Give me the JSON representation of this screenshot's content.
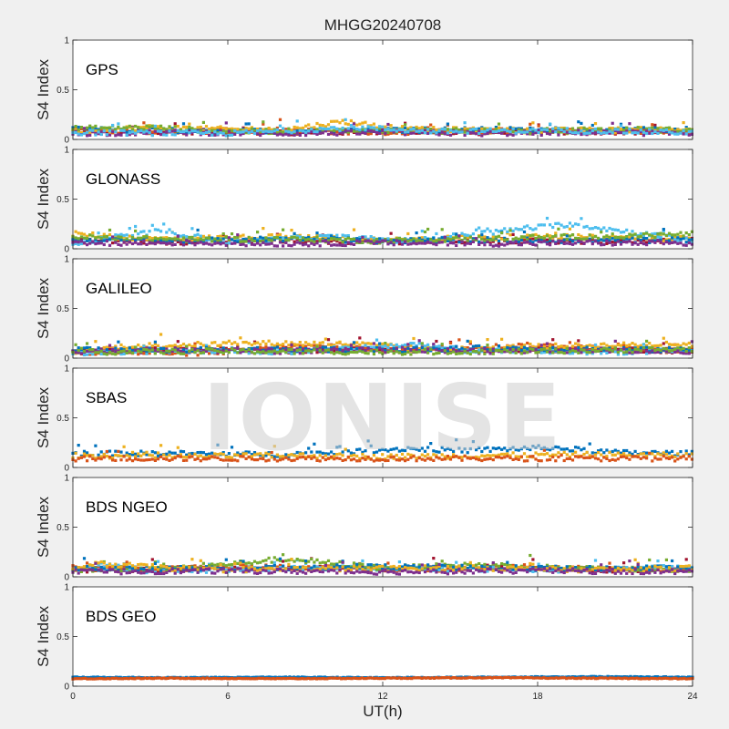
{
  "title": "MHGG20240708",
  "watermark": "IONISE",
  "xlabel": "UT(h)",
  "xlim": [
    0,
    24
  ],
  "xticks": [
    0,
    6,
    12,
    18,
    24
  ],
  "colors": [
    "#0072bd",
    "#d95319",
    "#edb120",
    "#7e2f8e",
    "#77ac30",
    "#4dbeee",
    "#a2142f"
  ],
  "chart_data": [
    {
      "type": "scatter",
      "label": "GPS",
      "ylabel": "S4 Index",
      "ylim": [
        0,
        1
      ],
      "yticks": [
        0,
        0.5,
        1
      ],
      "series": [
        {
          "color": "#a2142f",
          "x": [
            0,
            4,
            8,
            12,
            16,
            20,
            24
          ],
          "y": [
            0.07,
            0.08,
            0.07,
            0.08,
            0.07,
            0.08,
            0.07
          ]
        },
        {
          "color": "#d95319",
          "x": [
            0,
            4,
            8,
            12,
            16,
            20,
            24
          ],
          "y": [
            0.09,
            0.08,
            0.09,
            0.07,
            0.09,
            0.08,
            0.09
          ]
        },
        {
          "color": "#0072bd",
          "x": [
            0,
            4,
            8,
            12,
            16,
            20,
            24
          ],
          "y": [
            0.1,
            0.09,
            0.08,
            0.09,
            0.1,
            0.09,
            0.1
          ]
        },
        {
          "color": "#edb120",
          "x": [
            0,
            3,
            8,
            10.5,
            13,
            18,
            24
          ],
          "y": [
            0.08,
            0.12,
            0.09,
            0.18,
            0.1,
            0.09,
            0.1
          ]
        },
        {
          "color": "#77ac30",
          "x": [
            0,
            3,
            6,
            12,
            18,
            22,
            24
          ],
          "y": [
            0.11,
            0.12,
            0.08,
            0.09,
            0.08,
            0.1,
            0.09
          ]
        },
        {
          "color": "#7e2f8e",
          "x": [
            0,
            4,
            8,
            12,
            16,
            20,
            24
          ],
          "y": [
            0.06,
            0.07,
            0.06,
            0.07,
            0.06,
            0.07,
            0.06
          ]
        },
        {
          "color": "#4dbeee",
          "x": [
            0,
            6,
            11,
            14,
            19,
            24
          ],
          "y": [
            0.07,
            0.06,
            0.12,
            0.08,
            0.09,
            0.07
          ]
        }
      ]
    },
    {
      "type": "scatter",
      "label": "GLONASS",
      "ylabel": "S4 Index",
      "ylim": [
        0,
        1
      ],
      "yticks": [
        0,
        0.5,
        1
      ],
      "series": [
        {
          "color": "#a2142f",
          "x": [
            0,
            4,
            8,
            12,
            16,
            20,
            24
          ],
          "y": [
            0.08,
            0.07,
            0.08,
            0.07,
            0.08,
            0.07,
            0.09
          ]
        },
        {
          "color": "#edb120",
          "x": [
            0,
            3,
            8,
            12,
            15,
            19,
            24
          ],
          "y": [
            0.15,
            0.1,
            0.12,
            0.09,
            0.11,
            0.12,
            0.1
          ]
        },
        {
          "color": "#4dbeee",
          "x": [
            0,
            3.5,
            6,
            10,
            13,
            19.3,
            24
          ],
          "y": [
            0.06,
            0.18,
            0.07,
            0.12,
            0.08,
            0.25,
            0.08
          ]
        },
        {
          "color": "#0072bd",
          "x": [
            0,
            4,
            8,
            12,
            16,
            20,
            24
          ],
          "y": [
            0.09,
            0.08,
            0.1,
            0.08,
            0.09,
            0.08,
            0.09
          ]
        },
        {
          "color": "#77ac30",
          "x": [
            0,
            5,
            8,
            12,
            17,
            22,
            24
          ],
          "y": [
            0.12,
            0.09,
            0.1,
            0.08,
            0.11,
            0.13,
            0.15
          ]
        },
        {
          "color": "#7e2f8e",
          "x": [
            0,
            4,
            8,
            12,
            16,
            20,
            24
          ],
          "y": [
            0.05,
            0.06,
            0.05,
            0.06,
            0.05,
            0.06,
            0.05
          ]
        }
      ]
    },
    {
      "type": "scatter",
      "label": "GALILEO",
      "ylabel": "S4 Index",
      "ylim": [
        0,
        1
      ],
      "yticks": [
        0,
        0.5,
        1
      ],
      "series": [
        {
          "color": "#a2142f",
          "x": [
            0,
            4,
            8,
            12,
            16,
            20,
            24
          ],
          "y": [
            0.07,
            0.09,
            0.07,
            0.1,
            0.08,
            0.09,
            0.07
          ]
        },
        {
          "color": "#d95319",
          "x": [
            0,
            5,
            9,
            12,
            18,
            21,
            24
          ],
          "y": [
            0.06,
            0.05,
            0.12,
            0.08,
            0.13,
            0.09,
            0.07
          ]
        },
        {
          "color": "#edb120",
          "x": [
            0,
            2,
            7.5,
            11,
            14,
            19,
            23
          ],
          "y": [
            0.06,
            0.12,
            0.15,
            0.14,
            0.09,
            0.12,
            0.14
          ]
        },
        {
          "color": "#4dbeee",
          "x": [
            0,
            3,
            8,
            13.5,
            15,
            20,
            24
          ],
          "y": [
            0.05,
            0.07,
            0.06,
            0.14,
            0.08,
            0.06,
            0.07
          ]
        },
        {
          "color": "#0072bd",
          "x": [
            0,
            4,
            8,
            12,
            16,
            20,
            24
          ],
          "y": [
            0.09,
            0.08,
            0.09,
            0.08,
            0.1,
            0.09,
            0.08
          ]
        },
        {
          "color": "#7e2f8e",
          "x": [
            0,
            4,
            8,
            12,
            16,
            20,
            24
          ],
          "y": [
            0.07,
            0.08,
            0.07,
            0.08,
            0.07,
            0.08,
            0.07
          ]
        },
        {
          "color": "#77ac30",
          "x": [
            0,
            6,
            12,
            18,
            24
          ],
          "y": [
            0.06,
            0.07,
            0.06,
            0.07,
            0.09
          ]
        }
      ]
    },
    {
      "type": "scatter",
      "label": "SBAS",
      "ylabel": "S4 Index",
      "ylim": [
        0,
        1
      ],
      "yticks": [
        0,
        0.5,
        1
      ],
      "series": [
        {
          "color": "#0072bd",
          "x": [
            0,
            4,
            8,
            10,
            13,
            15,
            18.5,
            21,
            24
          ],
          "y": [
            0.14,
            0.14,
            0.13,
            0.15,
            0.19,
            0.17,
            0.2,
            0.15,
            0.14
          ]
        },
        {
          "color": "#edb120",
          "x": [
            0,
            4,
            8,
            12,
            16,
            20,
            24
          ],
          "y": [
            0.12,
            0.11,
            0.12,
            0.11,
            0.12,
            0.13,
            0.12
          ]
        },
        {
          "color": "#d95319",
          "x": [
            0,
            4,
            8,
            12,
            16,
            20,
            24
          ],
          "y": [
            0.09,
            0.09,
            0.09,
            0.09,
            0.09,
            0.09,
            0.09
          ]
        }
      ]
    },
    {
      "type": "scatter",
      "label": "BDS NGEO",
      "ylabel": "S4 Index",
      "ylim": [
        0,
        1
      ],
      "yticks": [
        0,
        0.5,
        1
      ],
      "series": [
        {
          "color": "#a2142f",
          "x": [
            0,
            4,
            8,
            12,
            16,
            20,
            24
          ],
          "y": [
            0.07,
            0.08,
            0.09,
            0.08,
            0.1,
            0.07,
            0.08
          ]
        },
        {
          "color": "#d95319",
          "x": [
            0,
            3,
            6,
            10,
            14,
            18,
            22,
            24
          ],
          "y": [
            0.09,
            0.07,
            0.1,
            0.09,
            0.08,
            0.1,
            0.07,
            0.09
          ]
        },
        {
          "color": "#4dbeee",
          "x": [
            0,
            1,
            3,
            6,
            10,
            14,
            20,
            24
          ],
          "y": [
            0.08,
            0.12,
            0.06,
            0.07,
            0.09,
            0.08,
            0.07,
            0.1
          ]
        },
        {
          "color": "#77ac30",
          "x": [
            0,
            4,
            8.2,
            12,
            16,
            20,
            24
          ],
          "y": [
            0.07,
            0.08,
            0.18,
            0.09,
            0.12,
            0.08,
            0.07
          ]
        },
        {
          "color": "#0072bd",
          "x": [
            0,
            4,
            8,
            12,
            16,
            20,
            24
          ],
          "y": [
            0.09,
            0.08,
            0.09,
            0.1,
            0.09,
            0.08,
            0.09
          ]
        },
        {
          "color": "#edb120",
          "x": [
            0,
            1,
            5,
            10,
            15,
            20,
            24
          ],
          "y": [
            0.06,
            0.13,
            0.07,
            0.08,
            0.09,
            0.07,
            0.09
          ]
        },
        {
          "color": "#7e2f8e",
          "x": [
            0,
            6,
            12,
            18,
            24
          ],
          "y": [
            0.05,
            0.06,
            0.05,
            0.06,
            0.05
          ]
        }
      ]
    },
    {
      "type": "scatter",
      "label": "BDS GEO",
      "ylabel": "S4 Index",
      "ylim": [
        0,
        1
      ],
      "yticks": [
        0,
        0.5,
        1
      ],
      "series": [
        {
          "color": "#0072bd",
          "x": [
            0,
            4,
            8,
            12,
            16,
            20,
            24
          ],
          "y": [
            0.09,
            0.085,
            0.09,
            0.085,
            0.09,
            0.095,
            0.09
          ]
        },
        {
          "color": "#d95319",
          "x": [
            0,
            4,
            8,
            12,
            16,
            20,
            24
          ],
          "y": [
            0.075,
            0.08,
            0.075,
            0.08,
            0.085,
            0.08,
            0.075
          ]
        }
      ]
    }
  ]
}
